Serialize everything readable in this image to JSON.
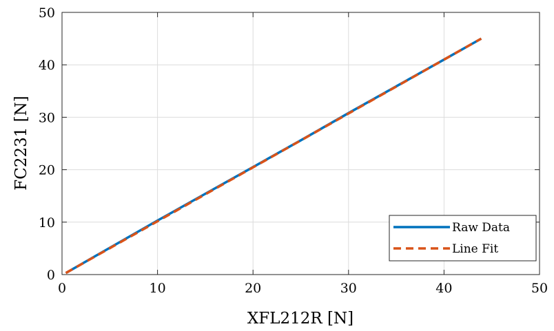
{
  "chart_data": {
    "type": "line",
    "xlabel": "XFL212R [N]",
    "ylabel": "FC2231 [N]",
    "xlim": [
      0,
      50
    ],
    "ylim": [
      0,
      50
    ],
    "xticks": [
      "0",
      "10",
      "20",
      "30",
      "40",
      "50"
    ],
    "yticks": [
      "0",
      "10",
      "20",
      "30",
      "40",
      "50"
    ],
    "grid": true,
    "legend_position": "bottom-right",
    "series": [
      {
        "name": "Raw Data",
        "style": "solid",
        "color": "#0072BD",
        "x": [
          0.4,
          5,
          10,
          15,
          20,
          25,
          30,
          35,
          40,
          43.9
        ],
        "y": [
          0.3,
          5.1,
          10.3,
          15.4,
          20.5,
          25.6,
          30.8,
          35.9,
          41.0,
          45.0
        ]
      },
      {
        "name": "Line Fit",
        "style": "dashed",
        "color": "#D95319",
        "x": [
          0.4,
          43.9
        ],
        "y": [
          0.3,
          45.0
        ]
      }
    ]
  }
}
